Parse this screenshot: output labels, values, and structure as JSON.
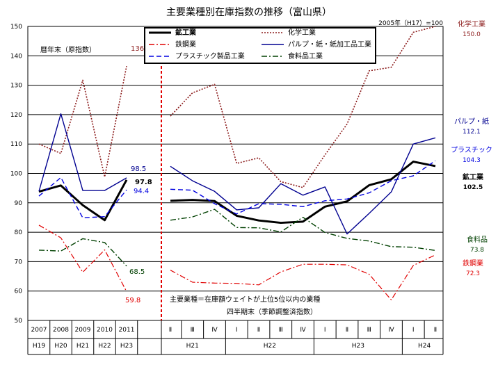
{
  "title": "主要業種別在庫指数の推移（富山県）",
  "base_note": "2005年（H17）=100",
  "annual_caption": "暦年末（原指数）",
  "footnote_line1": "主要業種＝在庫額ウェイトが上位5位以内の業種",
  "footnote_line2": "四半期末（季節調整済指数）",
  "colors": {
    "mining": "#000000",
    "chemical": "#8b1a1a",
    "steel": "#e00000",
    "pulp": "#000090",
    "plastic": "#0000e0",
    "food": "#004000"
  },
  "chart_data": {
    "type": "line",
    "ylim": [
      50,
      150
    ],
    "yticks": [
      50,
      60,
      70,
      80,
      90,
      100,
      110,
      120,
      130,
      140,
      150
    ],
    "annual_x": [
      "2007",
      "2008",
      "2009",
      "2010",
      "2011"
    ],
    "annual_era": [
      "H19",
      "H20",
      "H21",
      "H22",
      "H23"
    ],
    "quarter_x": [
      "Ⅱ",
      "Ⅲ",
      "Ⅳ",
      "Ⅰ",
      "Ⅱ",
      "Ⅲ",
      "Ⅳ",
      "Ⅰ",
      "Ⅱ",
      "Ⅲ",
      "Ⅳ",
      "Ⅰ",
      "Ⅱ"
    ],
    "quarter_era": [
      {
        "label": "H21",
        "from": 0,
        "to": 2
      },
      {
        "label": "H22",
        "from": 3,
        "to": 6
      },
      {
        "label": "H23",
        "from": 7,
        "to": 10
      },
      {
        "label": "H24",
        "from": 11,
        "to": 12
      }
    ],
    "series": [
      {
        "key": "mining",
        "name": "鉱工業",
        "annual": [
          93.8,
          95.9,
          89.2,
          84.1,
          97.8
        ],
        "quarter": [
          90.7,
          91.0,
          90.6,
          85.6,
          84.0,
          83.2,
          83.6,
          88.7,
          90.5,
          96.0,
          98.0,
          104.0,
          102.5
        ],
        "annual_label": "97.8",
        "end_name": "鉱工業",
        "end_value": "102.5"
      },
      {
        "key": "chemical",
        "name": "化学工業",
        "annual": [
          110.0,
          106.8,
          131.7,
          98.8,
          136.5
        ],
        "quarter": [
          119.5,
          127.4,
          130.3,
          103.4,
          105.3,
          97.2,
          95.2,
          106.3,
          116.8,
          134.9,
          136.1,
          148.0,
          150.0
        ],
        "annual_label": "136.5",
        "end_name": "化学工業",
        "end_value": "150.0"
      },
      {
        "key": "steel",
        "name": "鉄鋼業",
        "annual": [
          82.4,
          78.1,
          66.4,
          74.0,
          59.8
        ],
        "quarter": [
          67.1,
          63.0,
          62.7,
          62.6,
          62.1,
          66.5,
          69.1,
          69.1,
          68.9,
          65.7,
          57.0,
          68.7,
          72.3
        ],
        "annual_label": "59.8",
        "end_name": "鉄鋼業",
        "end_value": "72.3"
      },
      {
        "key": "pulp",
        "name": "パルプ・紙・紙加工品工業",
        "annual": [
          93.9,
          120.3,
          94.2,
          94.2,
          98.5
        ],
        "quarter": [
          102.4,
          97.5,
          93.9,
          87.6,
          88.3,
          96.5,
          92.6,
          95.4,
          79.4,
          86.4,
          93.7,
          110.0,
          112.1
        ],
        "annual_label": "98.5",
        "end_name": "パルプ・紙",
        "end_value": "112.1"
      },
      {
        "key": "plastic",
        "name": "プラスチック製品工業",
        "annual": [
          92.3,
          98.6,
          84.9,
          85.3,
          94.4
        ],
        "quarter": [
          94.6,
          94.3,
          89.7,
          86.2,
          89.7,
          89.5,
          88.7,
          90.7,
          91.3,
          93.4,
          97.5,
          99.2,
          104.3
        ],
        "annual_label": "94.4",
        "end_name": "プラスチック",
        "end_value": "104.3"
      },
      {
        "key": "food",
        "name": "食料品工業",
        "annual": [
          73.9,
          73.6,
          77.8,
          76.5,
          68.5
        ],
        "quarter": [
          84.1,
          85.2,
          87.8,
          81.6,
          81.5,
          80.1,
          85.1,
          79.9,
          77.9,
          77.0,
          75.1,
          74.9,
          73.8
        ],
        "annual_label": "68.5",
        "end_name": "食料品",
        "end_value": "73.8"
      }
    ],
    "legend_order": [
      "mining",
      "chemical",
      "steel",
      "pulp",
      "plastic",
      "food"
    ],
    "legend_placement": "top-center",
    "grid": true
  }
}
